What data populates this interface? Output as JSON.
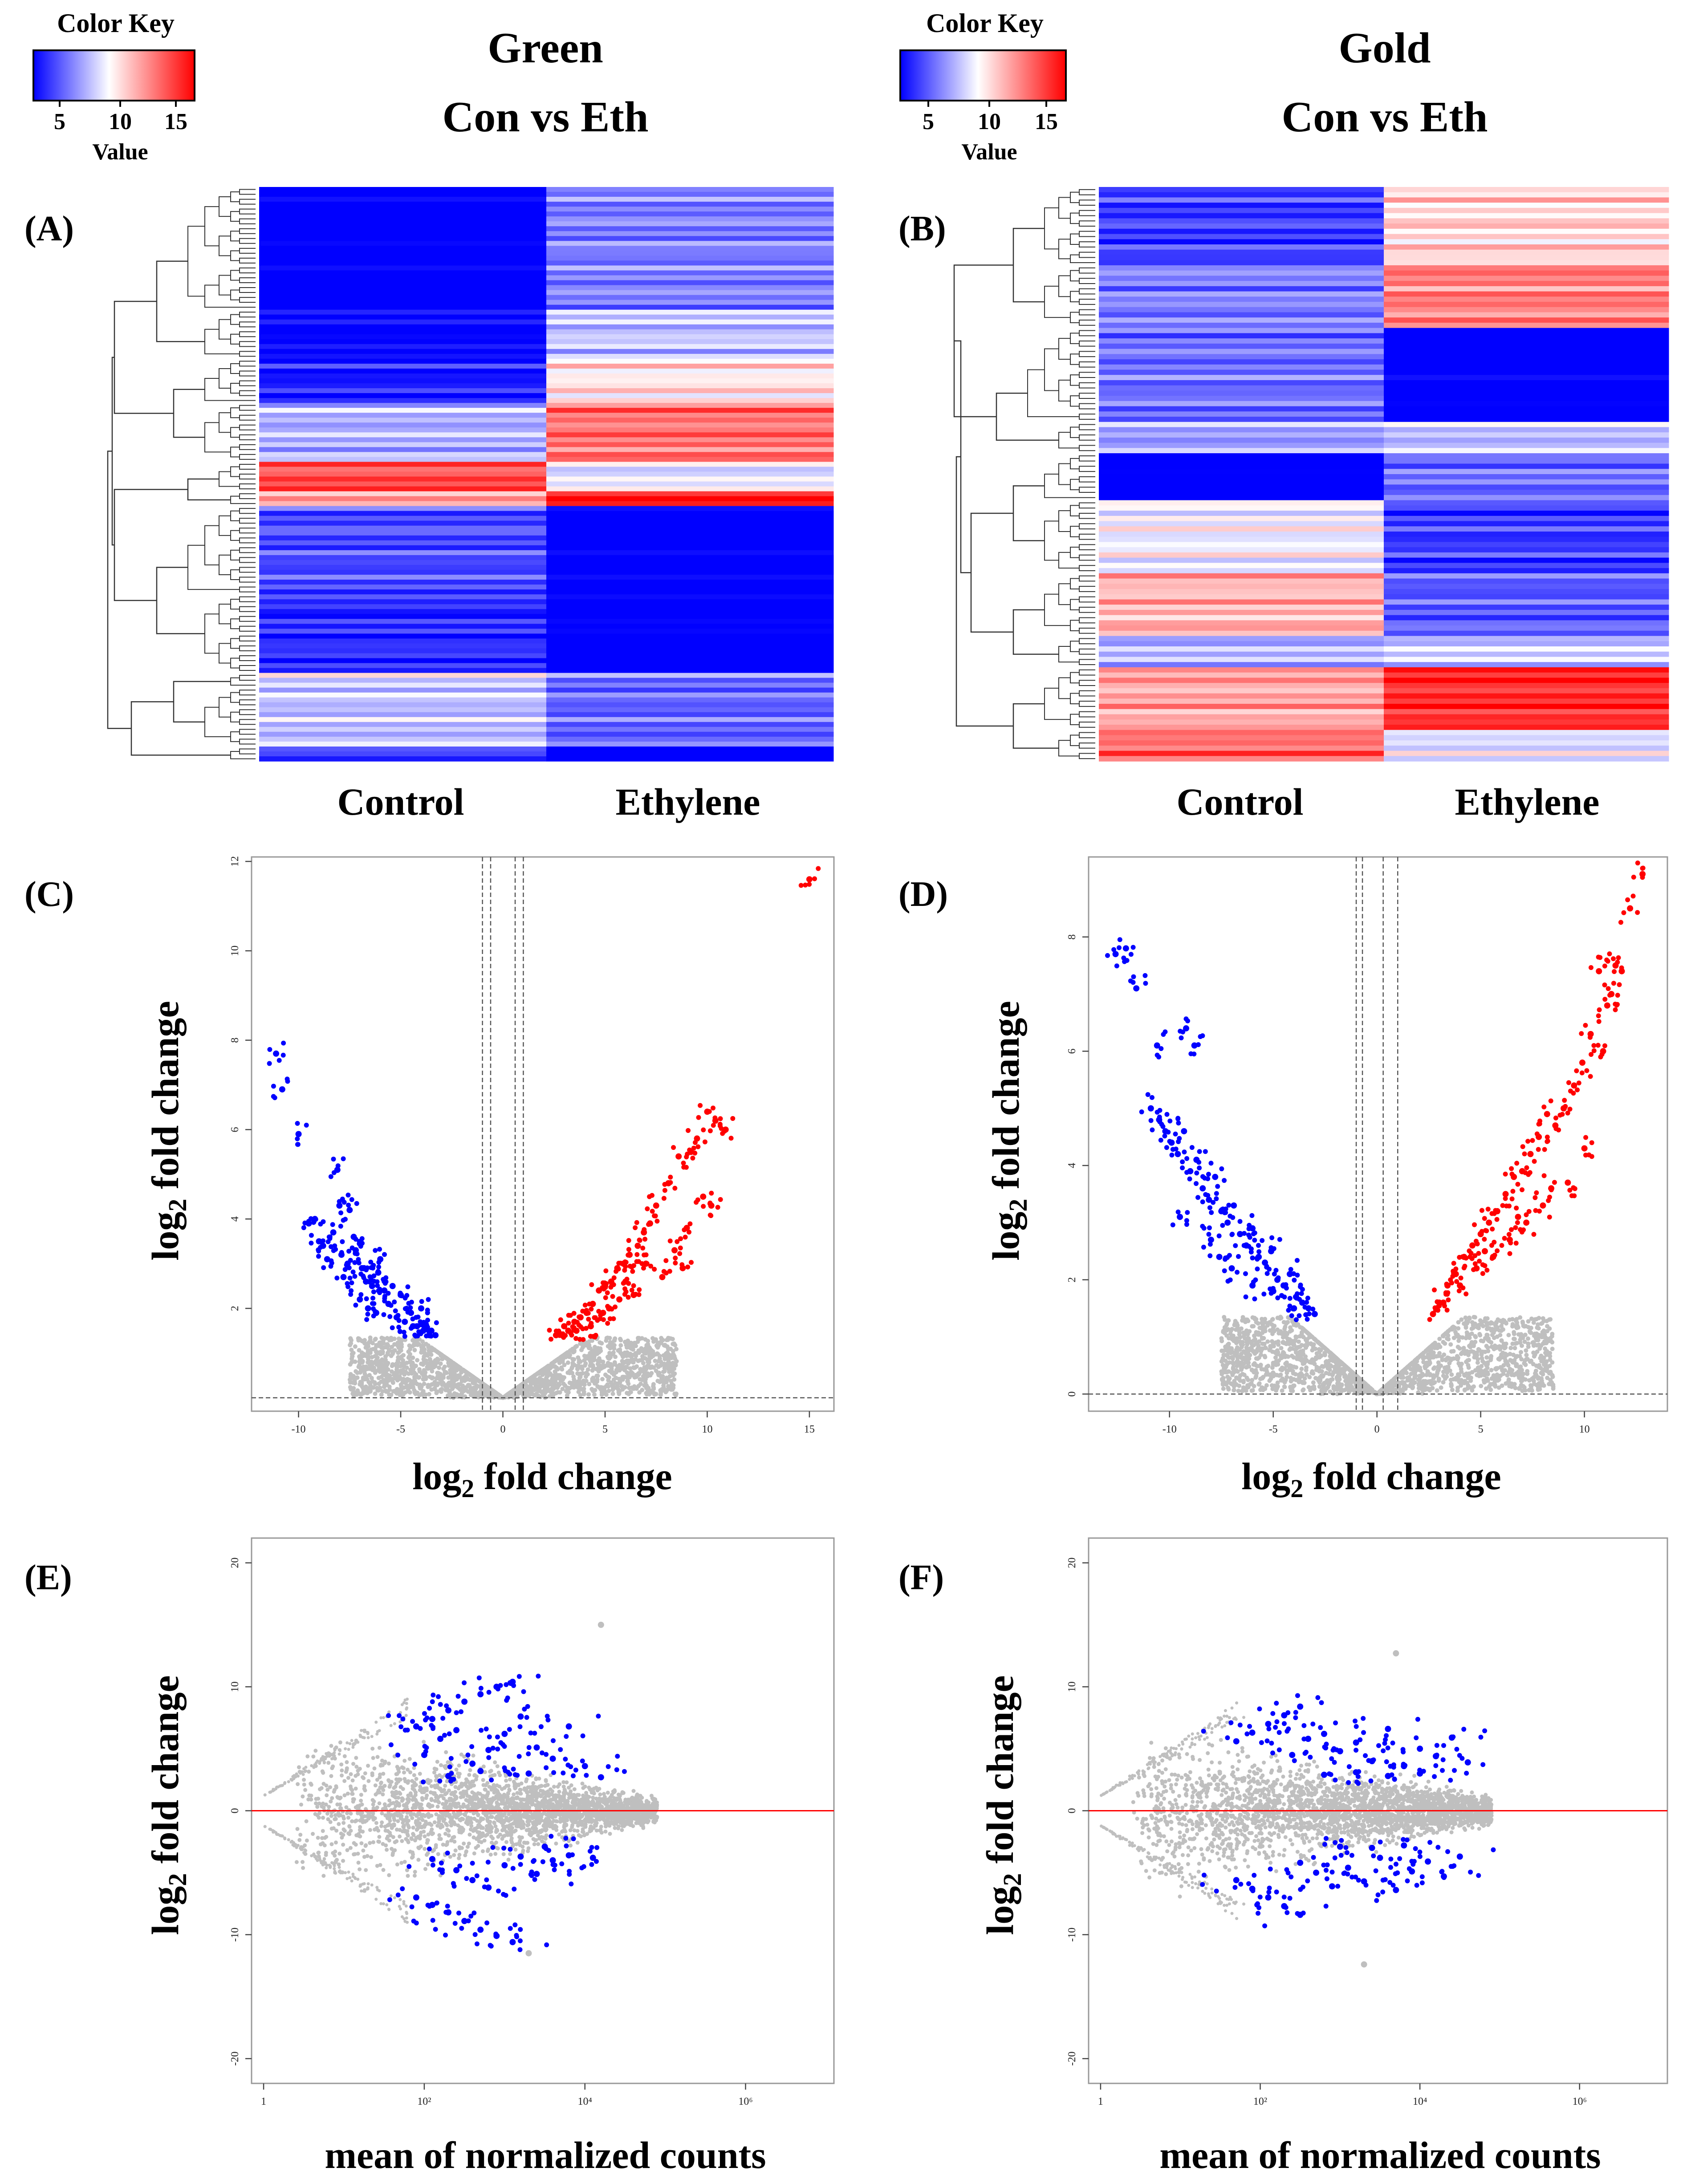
{
  "colors": {
    "blue": "#0000ff",
    "red": "#ff0000",
    "grey": "#bfbfbf",
    "ma_line": "#ff0000",
    "frame": "#999999",
    "dendro": "#333333"
  },
  "color_keys": [
    {
      "title": "Color Key",
      "label": "Value",
      "ticks": [
        "5",
        "10",
        "15"
      ],
      "colors": [
        "#0000ff",
        "#ffffff",
        "#ff0000"
      ]
    },
    {
      "title": "Color Key",
      "label": "Value",
      "ticks": [
        "5",
        "10",
        "15"
      ],
      "colors": [
        "#0000ff",
        "#ffffff",
        "#ff0000"
      ]
    }
  ],
  "panels": {
    "A": {
      "label": "(A)",
      "title_line1": "Green",
      "title_line2": "Con vs Eth",
      "columns": [
        "Control",
        "Ethylene"
      ]
    },
    "B": {
      "label": "(B)",
      "title_line1": "Gold",
      "title_line2": "Con vs Eth",
      "columns": [
        "Control",
        "Ethylene"
      ]
    },
    "C": {
      "label": "(C)",
      "xlabel": "log2 fold change",
      "ylabel": "log2 fold change"
    },
    "D": {
      "label": "(D)",
      "xlabel": "log2 fold change",
      "ylabel": "log2 fold change"
    },
    "E": {
      "label": "(E)",
      "xlabel": "mean of normalized counts",
      "ylabel": "log2 fold change"
    },
    "F": {
      "label": "(F)",
      "xlabel": "mean of normalized counts",
      "ylabel": "log2 fold change"
    }
  },
  "chart_data": [
    {
      "id": "A",
      "type": "heatmap",
      "title": "Green Con vs Eth",
      "columns": [
        "Control",
        "Ethylene"
      ],
      "value_range": [
        5,
        15
      ],
      "blocks": [
        {
          "rows": 25,
          "values": [
            4,
            7.5
          ]
        },
        {
          "rows": 10,
          "values": [
            4.8,
            8.8
          ]
        },
        {
          "rows": 9,
          "values": [
            5.5,
            10.5
          ]
        },
        {
          "rows": 12,
          "values": [
            8.5,
            12.8
          ]
        },
        {
          "rows": 6,
          "values": [
            13.5,
            9.5
          ]
        },
        {
          "rows": 3,
          "values": [
            12,
            15
          ]
        },
        {
          "rows": 18,
          "values": [
            6.5,
            4
          ]
        },
        {
          "rows": 16,
          "values": [
            5.8,
            4.2
          ]
        },
        {
          "rows": 3,
          "values": [
            9.5,
            7.5
          ]
        },
        {
          "rows": 12,
          "values": [
            8.8,
            7
          ]
        },
        {
          "rows": 3,
          "values": [
            6.5,
            4.2
          ]
        }
      ]
    },
    {
      "id": "B",
      "type": "heatmap",
      "title": "Gold Con vs Eth",
      "columns": [
        "Control",
        "Ethylene"
      ],
      "value_range": [
        5,
        15
      ],
      "blocks": [
        {
          "rows": 15,
          "values": [
            6.2,
            10.8
          ]
        },
        {
          "rows": 12,
          "values": [
            7.5,
            12.5
          ]
        },
        {
          "rows": 18,
          "values": [
            7.2,
            4
          ]
        },
        {
          "rows": 6,
          "values": [
            8.2,
            8.8
          ]
        },
        {
          "rows": 9,
          "values": [
            4,
            7.2
          ]
        },
        {
          "rows": 14,
          "values": [
            9.8,
            6.2
          ]
        },
        {
          "rows": 12,
          "values": [
            11.5,
            6.8
          ]
        },
        {
          "rows": 6,
          "values": [
            8.5,
            9
          ]
        },
        {
          "rows": 12,
          "values": [
            11.8,
            14.2
          ]
        },
        {
          "rows": 6,
          "values": [
            13,
            9.5
          ]
        }
      ]
    },
    {
      "id": "C",
      "type": "scatter",
      "subtype": "volcano",
      "xlim": [
        -12.3,
        16.2
      ],
      "ylim": [
        -0.3,
        12.1
      ],
      "xticks": [
        -10,
        -5,
        0,
        5,
        10,
        15
      ],
      "yticks": [
        2,
        4,
        6,
        8,
        10,
        12
      ],
      "xlabel": "log2 fold change",
      "ylabel": "log2 fold change",
      "vlines": [
        -1,
        -0.6,
        0.6,
        1
      ],
      "hline": 0,
      "significance_threshold": 1.3,
      "series": [
        {
          "name": "down-regulated",
          "color": "#0000ff",
          "x": [
            -11.1,
            -10.8,
            -10.0,
            -8.1,
            -8.0,
            -7.5,
            -9.5,
            -9.0,
            -8.8,
            -8.3,
            -7.9,
            -7.6,
            -7.2,
            -6.9,
            -6.7,
            -6.4,
            -6.1,
            -5.8,
            -7.8,
            -7.0,
            -6.6,
            -6.2,
            -5.6,
            -5.2,
            -4.8,
            -4.5,
            -4.2,
            -3.9,
            -3.6,
            -3.3,
            -5.0,
            -4.4,
            -4.0,
            -3.5,
            -6.0,
            -5.4,
            -7.3,
            -6.8,
            -8.6,
            -9.2
          ],
          "y": [
            7.7,
            6.9,
            5.9,
            5.1,
            4.3,
            4.2,
            3.9,
            3.5,
            3.4,
            3.7,
            3.2,
            3.0,
            3.3,
            2.9,
            2.6,
            2.5,
            2.8,
            2.4,
            2.7,
            2.2,
            2.0,
            1.9,
            2.1,
            1.8,
            1.7,
            1.9,
            1.6,
            1.5,
            1.4,
            1.4,
            2.3,
            1.6,
            2.0,
            1.5,
            3.1,
            2.5,
            3.6,
            2.9,
            3.1,
            4.0
          ]
        },
        {
          "name": "up-regulated",
          "color": "#ff0000",
          "x": [
            15.0,
            10.0,
            10.4,
            10.9,
            9.5,
            9.2,
            8.6,
            8.1,
            9.8,
            10.2,
            7.5,
            7.2,
            6.9,
            6.6,
            6.2,
            5.9,
            5.6,
            5.3,
            5.0,
            4.7,
            4.4,
            4.1,
            3.8,
            3.5,
            3.2,
            2.9,
            2.6,
            8.4,
            8.8,
            7.8,
            6.4,
            5.7,
            4.9,
            4.3,
            3.6,
            9.0,
            7.0,
            6.0,
            5.2,
            3.0
          ],
          "y": [
            11.6,
            6.4,
            6.2,
            6.0,
            5.8,
            5.5,
            5.4,
            4.8,
            4.5,
            4.3,
            4.3,
            3.9,
            3.7,
            3.4,
            3.2,
            3.0,
            2.9,
            2.6,
            2.5,
            2.4,
            2.1,
            1.9,
            1.8,
            1.7,
            1.5,
            1.4,
            1.4,
            3.3,
            2.9,
            2.7,
            2.3,
            2.2,
            1.9,
            1.6,
            1.5,
            3.8,
            3.0,
            2.6,
            2.0,
            1.6
          ]
        }
      ]
    },
    {
      "id": "D",
      "type": "scatter",
      "subtype": "volcano",
      "xlim": [
        -13.9,
        14.0
      ],
      "ylim": [
        -0.3,
        9.4
      ],
      "xticks": [
        -10,
        -5,
        0,
        5,
        10
      ],
      "yticks": [
        0,
        2,
        4,
        6,
        8
      ],
      "xlabel": "log2 fold change",
      "ylabel": "log2 fold change",
      "vlines": [
        -1,
        -0.7,
        0.3,
        1
      ],
      "hline": 0,
      "significance_threshold": 1.3,
      "series": [
        {
          "name": "down-regulated",
          "color": "#0000ff",
          "x": [
            -12.6,
            -12.1,
            -11.6,
            -10.6,
            -9.2,
            -8.8,
            -10.9,
            -10.5,
            -10.2,
            -9.9,
            -9.6,
            -9.3,
            -9.0,
            -8.7,
            -8.4,
            -8.1,
            -7.8,
            -7.5,
            -7.2,
            -6.9,
            -6.6,
            -6.3,
            -6.0,
            -5.7,
            -5.4,
            -5.1,
            -4.8,
            -4.5,
            -4.2,
            -3.9,
            -3.6,
            -3.3,
            -3.0,
            -8.0,
            -7.0,
            -6.0,
            -5.0,
            -4.0,
            -9.5,
            -7.6
          ],
          "y": [
            7.7,
            7.8,
            7.1,
            6.1,
            6.4,
            6.1,
            5.0,
            4.8,
            4.6,
            4.4,
            4.2,
            4.6,
            3.9,
            4.1,
            3.6,
            3.4,
            3.8,
            3.2,
            3.0,
            3.3,
            2.8,
            2.6,
            2.9,
            2.4,
            2.3,
            2.5,
            2.0,
            1.9,
            2.1,
            1.7,
            1.6,
            1.5,
            1.4,
            2.7,
            2.2,
            1.9,
            1.8,
            1.5,
            3.1,
            2.4
          ]
        },
        {
          "name": "up-regulated",
          "color": "#ff0000",
          "x": [
            12.8,
            12.2,
            11.5,
            11.3,
            11.1,
            10.7,
            10.3,
            9.9,
            9.5,
            9.0,
            8.6,
            8.2,
            7.8,
            7.4,
            7.0,
            6.6,
            6.2,
            5.8,
            5.4,
            5.0,
            4.6,
            4.2,
            3.8,
            3.4,
            3.0,
            2.7,
            11.8,
            10.9,
            9.2,
            8.0,
            7.2,
            6.4,
            5.6,
            4.8,
            4.0,
            3.2,
            10.0,
            8.4,
            6.8,
            5.2
          ],
          "y": [
            9.1,
            8.5,
            7.5,
            7.0,
            6.8,
            7.4,
            6.3,
            5.8,
            5.4,
            5.0,
            4.7,
            4.9,
            4.5,
            4.2,
            3.9,
            3.8,
            3.5,
            3.2,
            3.0,
            2.8,
            2.6,
            2.4,
            2.1,
            1.9,
            1.6,
            1.4,
            7.4,
            6.0,
            3.7,
            3.3,
            3.0,
            2.7,
            2.4,
            2.2,
            1.9,
            1.6,
            4.3,
            3.6,
            3.1,
            2.5
          ]
        }
      ]
    },
    {
      "id": "E",
      "type": "scatter",
      "subtype": "MA",
      "xlim": [
        -0.15,
        7.1
      ],
      "ylim": [
        -22,
        22
      ],
      "xticks": [
        0,
        2,
        4,
        6
      ],
      "xtick_labels": [
        "1",
        "10²",
        "10⁴",
        "10⁶"
      ],
      "yticks": [
        -20,
        -10,
        0,
        10,
        20
      ],
      "xlabel": "mean of normalized counts",
      "ylabel": "log2 fold change",
      "hline": 0,
      "series": [
        {
          "name": "significant",
          "color": "#0000ff",
          "x": [
            1.9,
            2.1,
            2.3,
            2.5,
            2.7,
            2.9,
            3.1,
            1.9,
            2.1,
            2.3,
            2.5,
            2.7,
            2.9,
            3.1,
            2.0,
            2.2,
            2.4,
            2.6,
            2.8,
            3.0,
            3.2,
            3.4,
            3.6,
            3.8,
            4.0,
            2.1,
            2.4,
            2.6,
            2.8,
            3.0,
            3.2,
            3.4,
            3.6,
            3.8,
            4.1,
            2.3,
            2.7,
            3.3,
            3.5,
            4.2
          ],
          "y": [
            6.8,
            7.4,
            8.1,
            8.8,
            9.4,
            10.0,
            10.4,
            -7.0,
            -7.6,
            -8.2,
            -8.9,
            -9.6,
            -10.1,
            -10.6,
            4.5,
            5.8,
            6.5,
            3.8,
            4.9,
            6.2,
            7.6,
            5.1,
            4.2,
            6.8,
            3.6,
            -3.9,
            -4.8,
            -5.6,
            -6.2,
            -4.4,
            -3.7,
            -5.1,
            -4.0,
            -3.6,
            -3.8,
            2.8,
            3.2,
            3.0,
            -2.9,
            2.7
          ]
        },
        {
          "name": "outlier",
          "color": "#bfbfbf",
          "x": [
            4.2,
            3.3
          ],
          "y": [
            15.0,
            -11.5
          ]
        }
      ]
    },
    {
      "id": "F",
      "type": "scatter",
      "subtype": "MA",
      "xlim": [
        -0.15,
        7.1
      ],
      "ylim": [
        -22,
        22
      ],
      "xticks": [
        0,
        2,
        4,
        6
      ],
      "xtick_labels": [
        "1",
        "10²",
        "10⁴",
        "10⁶"
      ],
      "yticks": [
        -20,
        -10,
        0,
        10,
        20
      ],
      "xlabel": "mean of normalized counts",
      "ylabel": "log2 fold change",
      "hline": 0,
      "series": [
        {
          "name": "significant",
          "color": "#0000ff",
          "x": [
            1.7,
            1.9,
            2.1,
            2.3,
            2.5,
            1.7,
            1.9,
            2.1,
            2.3,
            2.5,
            2.4,
            2.6,
            2.8,
            3.0,
            3.2,
            3.4,
            3.6,
            3.8,
            4.0,
            4.2,
            4.4,
            4.6,
            2.5,
            2.7,
            2.9,
            3.1,
            3.3,
            3.5,
            3.7,
            3.9,
            4.1,
            4.3,
            4.5,
            2.8,
            3.2,
            3.6,
            4.0,
            3.0,
            3.4,
            3.8
          ],
          "y": [
            5.6,
            6.3,
            7.0,
            7.7,
            8.4,
            -5.6,
            -6.3,
            -7.0,
            -7.7,
            -8.4,
            4.5,
            5.8,
            6.2,
            4.8,
            5.5,
            4.0,
            6.6,
            3.6,
            5.0,
            4.4,
            5.9,
            3.9,
            -4.2,
            -5.0,
            -6.1,
            -4.6,
            -5.7,
            -3.8,
            -6.4,
            -4.9,
            -4.1,
            -5.3,
            -3.7,
            2.9,
            3.1,
            2.8,
            3.0,
            -2.9,
            -3.0,
            -2.8
          ]
        },
        {
          "name": "outlier",
          "color": "#bfbfbf",
          "x": [
            3.7,
            3.3
          ],
          "y": [
            12.7,
            -12.4
          ]
        }
      ]
    }
  ]
}
